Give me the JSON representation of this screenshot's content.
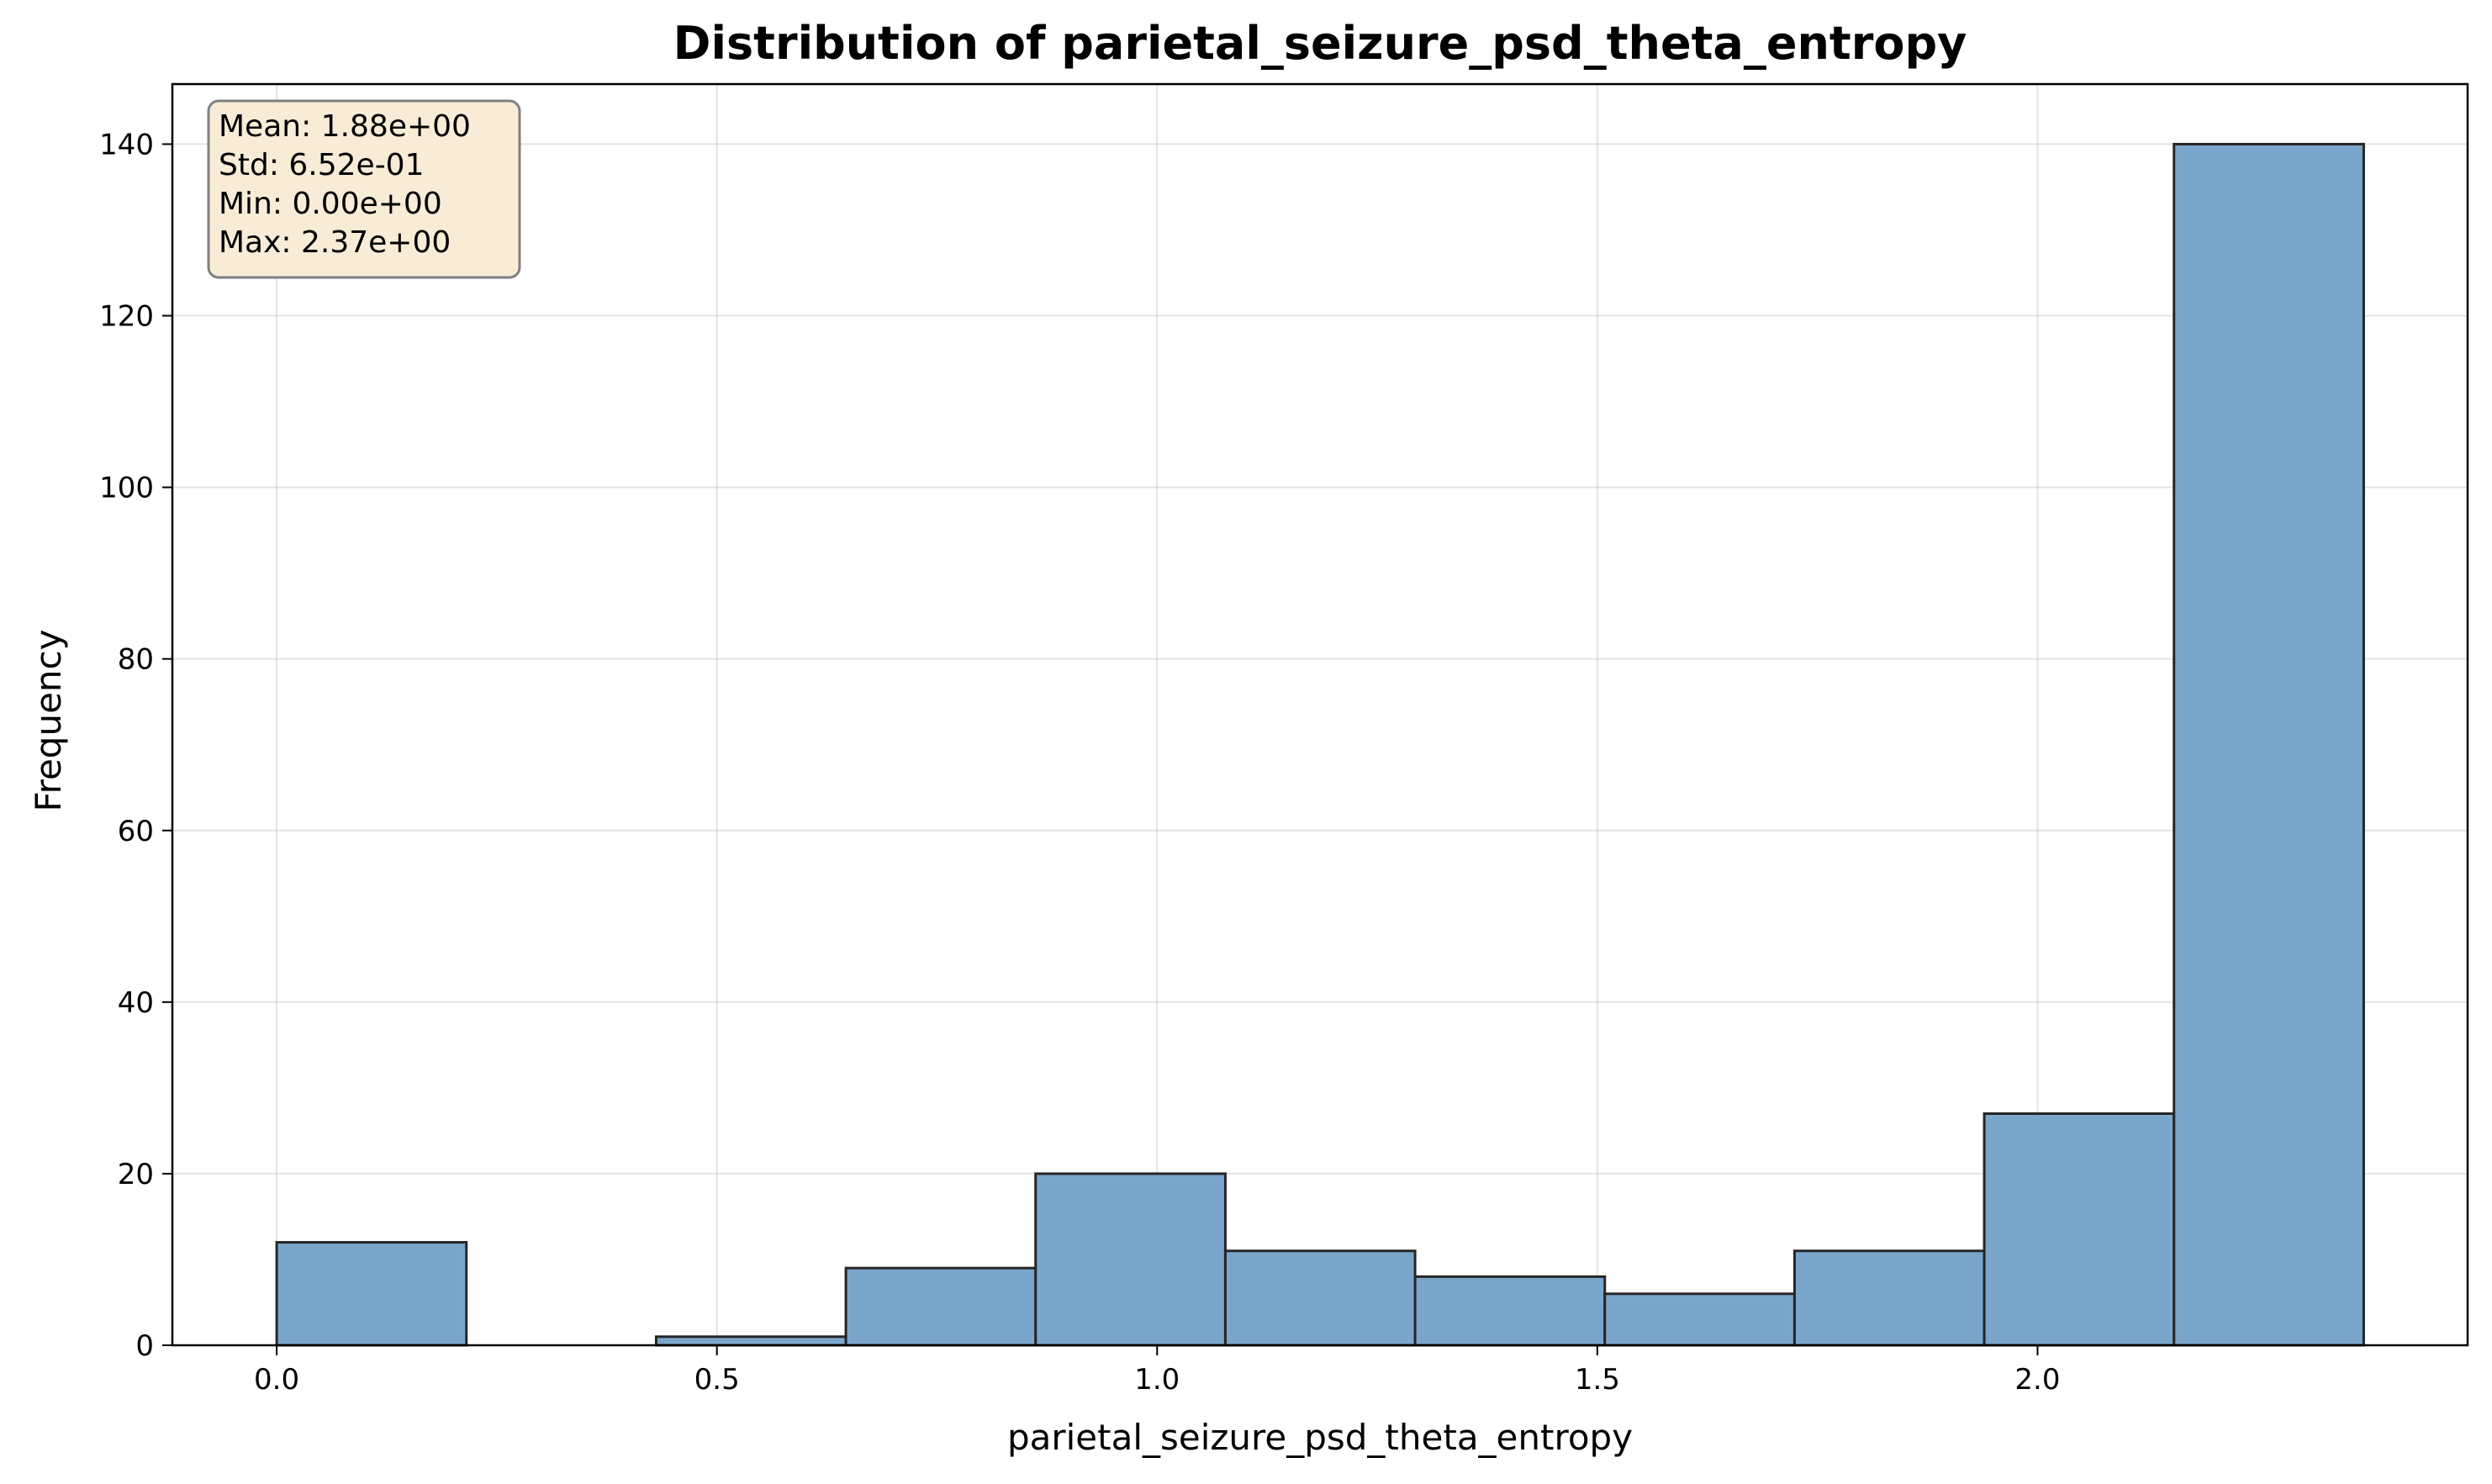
{
  "chart_data": {
    "type": "bar",
    "title": "Distribution of parietal_seizure_psd_theta_entropy",
    "xlabel": "parietal_seizure_psd_theta_entropy",
    "ylabel": "Frequency",
    "xlim": [
      -0.1185,
      2.4885
    ],
    "ylim": [
      0,
      147
    ],
    "xticks": [
      0.0,
      0.5,
      1.0,
      1.5,
      2.0
    ],
    "xtick_labels": [
      "0.0",
      "0.5",
      "1.0",
      "1.5",
      "2.0"
    ],
    "yticks": [
      0,
      20,
      40,
      60,
      80,
      100,
      120,
      140
    ],
    "ytick_labels": [
      "0",
      "20",
      "40",
      "60",
      "80",
      "100",
      "120",
      "140"
    ],
    "grid": true,
    "bins": [
      {
        "x0": 0.0,
        "x1": 0.2155,
        "count": 12
      },
      {
        "x0": 0.2155,
        "x1": 0.431,
        "count": 0
      },
      {
        "x0": 0.431,
        "x1": 0.6465,
        "count": 1
      },
      {
        "x0": 0.6465,
        "x1": 0.862,
        "count": 9
      },
      {
        "x0": 0.862,
        "x1": 1.0775,
        "count": 20
      },
      {
        "x0": 1.0775,
        "x1": 1.293,
        "count": 11
      },
      {
        "x0": 1.293,
        "x1": 1.5085,
        "count": 8
      },
      {
        "x0": 1.5085,
        "x1": 1.724,
        "count": 6
      },
      {
        "x0": 1.724,
        "x1": 1.9395,
        "count": 11
      },
      {
        "x0": 1.9395,
        "x1": 2.155,
        "count": 27
      },
      {
        "x0": 2.155,
        "x1": 2.3705,
        "count": 140
      }
    ],
    "bar_color": "#7ba6cb",
    "edge_color": "#262626",
    "stats_box": {
      "lines": [
        "Mean: 1.88e+00",
        "Std: 6.52e-01",
        "Min: 0.00e+00",
        "Max: 2.37e+00"
      ],
      "background": "#f8ecd6",
      "border": "#7f7f7f"
    }
  }
}
